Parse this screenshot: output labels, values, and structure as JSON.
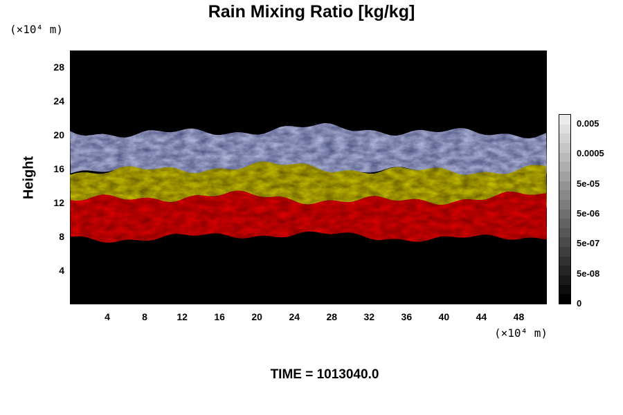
{
  "chart_data": {
    "type": "heatmap",
    "title": "Rain Mixing Ratio [kg/kg]",
    "ylabel": "Height",
    "xlabel": "",
    "x_unit": "(×10⁴ m)",
    "y_unit": "(×10⁴ m)",
    "xlim": [
      0,
      51
    ],
    "ylim": [
      0,
      30
    ],
    "x_ticks": [
      "4",
      "8",
      "12",
      "16",
      "20",
      "24",
      "28",
      "32",
      "36",
      "40",
      "44",
      "48"
    ],
    "y_ticks": [
      "4",
      "8",
      "12",
      "16",
      "20",
      "24",
      "28"
    ],
    "bands": [
      {
        "name": "white-blue",
        "y_range": [
          15.5,
          20.5
        ],
        "color": "#b4b9dd"
      },
      {
        "name": "yellow",
        "y_range": [
          11.5,
          16.0
        ],
        "color": "#c8c016"
      },
      {
        "name": "red",
        "y_range": [
          8.0,
          12.5
        ],
        "color": "#e01010"
      }
    ],
    "colorbar": {
      "labels": [
        "0.005",
        "0.0005",
        "5e-05",
        "5e-06",
        "5e-07",
        "5e-08",
        "0"
      ],
      "level_count": 20
    },
    "time_label": "TIME = 1013040.0"
  }
}
